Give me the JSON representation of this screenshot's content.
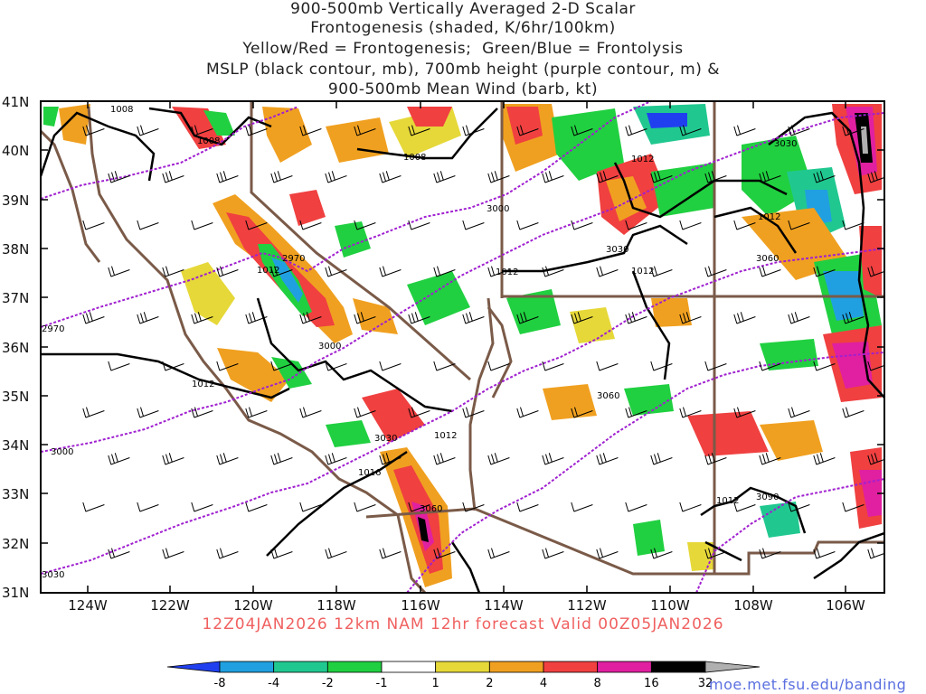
{
  "title_lines": [
    "900-500mb Vertically Averaged 2-D Scalar",
    "Frontogenesis (shaded, K/6hr/100km)",
    "Yellow/Red = Frontogenesis;  Green/Blue = Frontolysis",
    "MSLP (black contour, mb), 700mb height (purple contour, m) &",
    "900-500mb Mean Wind (barb, kt)"
  ],
  "lat_labels": [
    "41N",
    "40N",
    "39N",
    "38N",
    "37N",
    "36N",
    "35N",
    "34N",
    "33N",
    "32N",
    "31N"
  ],
  "lon_labels": [
    "124W",
    "122W",
    "120W",
    "118W",
    "116W",
    "114W",
    "112W",
    "110W",
    "108W",
    "106W"
  ],
  "mslp_labels": [
    "1008",
    "1008",
    "1008",
    "1012",
    "1012",
    "1012",
    "1012",
    "1012",
    "1012",
    "1012",
    "1016",
    "1012"
  ],
  "height_labels": [
    "2970",
    "3000",
    "3000",
    "3030",
    "3030",
    "3030",
    "3060",
    "3060",
    "3060",
    "3090",
    "2970",
    "3000",
    "3030"
  ],
  "valid_text": "12Z04JAN2026 12km NAM 12hr forecast Valid 00Z05JAN2026",
  "credit": "moe.met.fsu.edu/banding",
  "colorbar": {
    "labels": [
      "-8",
      "-4",
      "-2",
      "-1",
      "1",
      "2",
      "4",
      "8",
      "16",
      "32"
    ],
    "colors": [
      "#2040f0",
      "#20a0e0",
      "#20c890",
      "#20d040",
      "#ffffff",
      "#e6d838",
      "#f0a020",
      "#f04040",
      "#e020a0",
      "#000000",
      "#b0b0b0"
    ]
  },
  "colors": {
    "mslp": "#000000",
    "height": "#a020d0",
    "borders": "#7a5a48",
    "valid_text": "#f06060",
    "credit": "#5a6fe0"
  }
}
